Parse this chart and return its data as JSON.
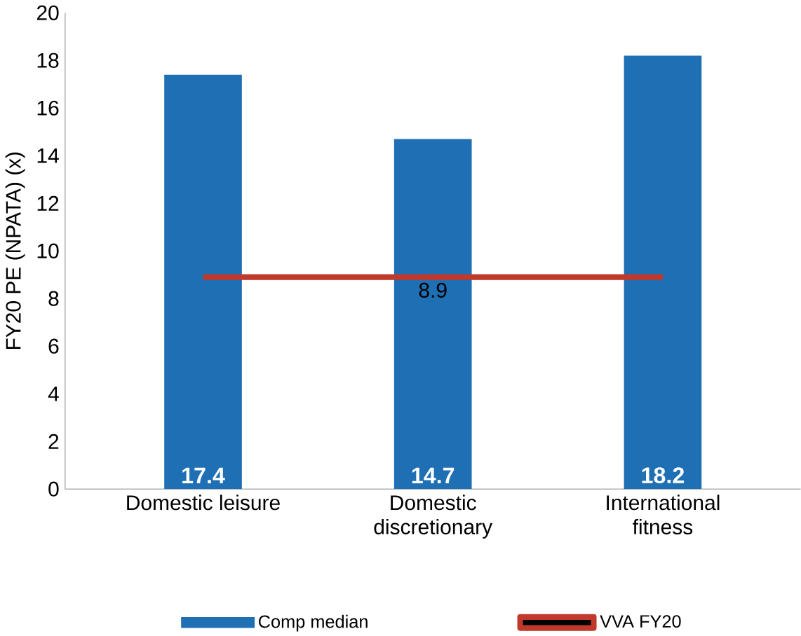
{
  "chart_data": {
    "type": "bar",
    "ylabel": "FY20 PE (NPATA) (x)",
    "categories": [
      "Domestic leisure",
      "Domestic discretionary",
      "International fitness"
    ],
    "series": [
      {
        "name": "Comp median",
        "color": "#1f6fb4",
        "values": [
          17.4,
          14.7,
          18.2
        ],
        "value_labels": [
          "17.4",
          "14.7",
          "18.2"
        ]
      },
      {
        "name": "VVA FY20",
        "type": "line",
        "color": "#c0392b",
        "values": [
          8.9,
          8.9,
          8.9
        ],
        "value_labels": [
          null,
          "8.9",
          null
        ]
      }
    ],
    "ylim": [
      0,
      20
    ],
    "yticks": [
      0,
      2,
      4,
      6,
      8,
      10,
      12,
      14,
      16,
      18,
      20
    ],
    "grid": false,
    "legend": "bottom"
  }
}
